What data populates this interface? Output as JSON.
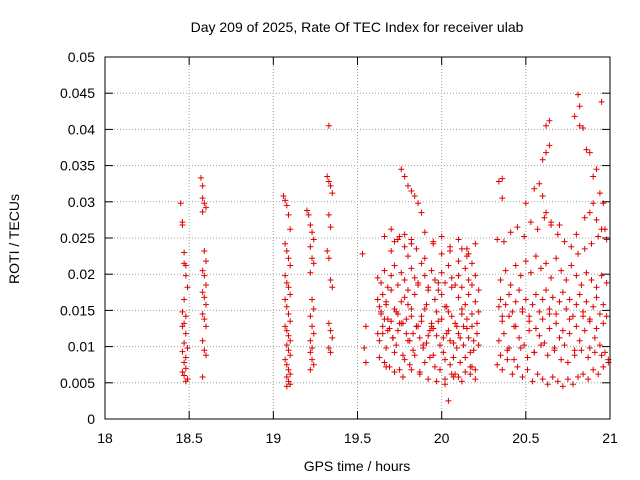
{
  "chart_data": {
    "type": "scatter",
    "title": "Day 209 of 2025, Rate Of TEC Index for receiver ulab",
    "xlabel": "GPS time / hours",
    "ylabel": "ROTI / TECUs",
    "xlim": [
      18,
      21
    ],
    "ylim": [
      0,
      0.05
    ],
    "xticks": [
      18,
      18.5,
      19,
      19.5,
      20,
      20.5,
      21
    ],
    "xtick_labels": [
      "18",
      "18.5",
      "19",
      "19.5",
      "20",
      "20.5",
      "21"
    ],
    "yticks": [
      0,
      0.005,
      0.01,
      0.015,
      0.02,
      0.025,
      0.03,
      0.035,
      0.04,
      0.045,
      0.05
    ],
    "ytick_labels": [
      "0",
      "0.005",
      "0.01",
      "0.015",
      "0.02",
      "0.025",
      "0.03",
      "0.035",
      "0.04",
      "0.045",
      "0.05"
    ],
    "grid": true,
    "marker": "+",
    "color": "#e00000",
    "x": [
      18.45,
      18.46,
      18.46,
      18.47,
      18.47,
      18.48,
      18.48,
      18.49,
      18.47,
      18.46,
      18.48,
      18.47,
      18.46,
      18.48,
      18.47,
      18.49,
      18.46,
      18.48,
      18.47,
      18.48,
      18.46,
      18.47,
      18.49,
      18.48,
      18.57,
      18.58,
      18.58,
      18.59,
      18.6,
      18.58,
      18.59,
      18.6,
      18.58,
      18.59,
      18.6,
      18.58,
      18.59,
      18.6,
      18.58,
      18.59,
      18.6,
      18.58,
      18.59,
      18.6,
      18.58,
      19.06,
      19.07,
      19.08,
      19.09,
      19.1,
      19.07,
      19.08,
      19.09,
      19.1,
      19.07,
      19.08,
      19.09,
      19.1,
      19.07,
      19.08,
      19.09,
      19.1,
      19.07,
      19.08,
      19.09,
      19.1,
      19.08,
      19.09,
      19.1,
      19.07,
      19.08,
      19.09,
      19.1,
      19.08,
      19.09,
      19.1,
      19.08,
      19.2,
      19.21,
      19.22,
      19.23,
      19.24,
      19.22,
      19.23,
      19.24,
      19.22,
      19.23,
      19.24,
      19.22,
      19.23,
      19.24,
      19.22,
      19.23,
      19.22,
      19.23,
      19.24,
      19.22,
      19.32,
      19.33,
      19.34,
      19.35,
      19.33,
      19.34,
      19.32,
      19.33,
      19.34,
      19.35,
      19.33,
      19.34,
      19.35,
      19.33,
      19.34,
      19.33,
      19.53,
      19.55,
      19.54,
      19.55,
      19.62,
      19.63,
      19.64,
      19.65,
      19.66,
      19.67,
      19.68,
      19.7,
      19.72,
      19.74,
      19.76,
      19.78,
      19.8,
      19.82,
      19.84,
      19.86,
      19.88,
      19.9,
      19.92,
      19.94,
      19.96,
      19.98,
      20.0,
      20.02,
      20.04,
      20.06,
      20.08,
      20.1,
      20.12,
      20.14,
      20.16,
      20.18,
      20.2,
      20.22,
      19.63,
      19.65,
      19.67,
      19.69,
      19.71,
      19.73,
      19.75,
      19.77,
      19.79,
      19.81,
      19.83,
      19.85,
      19.87,
      19.89,
      19.91,
      19.93,
      19.95,
      19.97,
      19.99,
      20.01,
      20.03,
      20.05,
      20.07,
      20.09,
      20.11,
      20.13,
      20.15,
      20.17,
      20.19,
      20.21,
      19.62,
      19.64,
      19.66,
      19.68,
      19.7,
      19.72,
      19.74,
      19.76,
      19.78,
      19.8,
      19.82,
      19.84,
      19.86,
      19.88,
      19.9,
      19.92,
      19.94,
      19.96,
      19.98,
      20.0,
      20.02,
      20.04,
      20.06,
      20.08,
      20.1,
      20.12,
      20.14,
      20.16,
      20.18,
      20.2,
      20.22,
      19.63,
      19.66,
      19.69,
      19.72,
      19.75,
      19.78,
      19.81,
      19.84,
      19.87,
      19.9,
      19.93,
      19.96,
      19.99,
      20.02,
      20.05,
      20.08,
      20.11,
      20.14,
      20.17,
      20.2,
      19.64,
      19.67,
      19.7,
      19.73,
      19.76,
      19.79,
      19.82,
      19.85,
      19.88,
      19.91,
      19.94,
      19.97,
      20.0,
      20.03,
      20.06,
      20.09,
      20.12,
      20.15,
      20.18,
      20.21,
      19.62,
      19.65,
      19.68,
      19.71,
      19.74,
      19.77,
      19.8,
      19.83,
      19.86,
      19.89,
      19.92,
      19.95,
      19.98,
      20.01,
      20.04,
      20.07,
      20.1,
      20.13,
      20.16,
      20.19,
      20.22,
      19.7,
      19.72,
      19.75,
      19.78,
      19.8,
      19.82,
      19.85,
      19.9,
      19.95,
      20.0,
      20.05,
      20.1,
      20.15,
      19.76,
      19.78,
      19.8,
      19.82,
      19.84,
      19.86,
      19.88,
      20.02,
      20.06,
      20.1,
      20.14,
      20.18,
      19.66,
      19.7,
      19.74,
      19.78,
      19.82,
      19.9,
      19.95,
      20.0,
      20.05,
      20.1,
      20.15,
      20.2,
      19.67,
      19.72,
      19.77,
      19.82,
      19.87,
      19.92,
      19.97,
      20.02,
      20.07,
      20.12,
      20.17,
      20.2,
      20.04,
      20.12,
      20.16,
      20.18,
      20.33,
      20.34,
      20.35,
      20.36,
      20.38,
      20.4,
      20.42,
      20.44,
      20.46,
      20.48,
      20.5,
      20.52,
      20.54,
      20.56,
      20.58,
      20.6,
      20.62,
      20.64,
      20.66,
      20.68,
      20.7,
      20.72,
      20.74,
      20.76,
      20.78,
      20.8,
      20.82,
      20.84,
      20.86,
      20.88,
      20.9,
      20.92,
      20.94,
      20.96,
      20.98,
      20.34,
      20.37,
      20.4,
      20.43,
      20.46,
      20.49,
      20.52,
      20.55,
      20.58,
      20.61,
      20.64,
      20.67,
      20.7,
      20.73,
      20.76,
      20.79,
      20.82,
      20.85,
      20.88,
      20.91,
      20.94,
      20.97,
      20.35,
      20.38,
      20.41,
      20.44,
      20.47,
      20.5,
      20.53,
      20.56,
      20.59,
      20.62,
      20.65,
      20.68,
      20.71,
      20.74,
      20.77,
      20.8,
      20.83,
      20.86,
      20.89,
      20.92,
      20.95,
      20.98,
      20.33,
      20.36,
      20.39,
      20.42,
      20.45,
      20.48,
      20.51,
      20.54,
      20.57,
      20.6,
      20.63,
      20.66,
      20.69,
      20.72,
      20.75,
      20.78,
      20.81,
      20.84,
      20.87,
      20.9,
      20.93,
      20.96,
      20.99,
      20.36,
      20.4,
      20.44,
      20.48,
      20.52,
      20.56,
      20.6,
      20.64,
      20.68,
      20.72,
      20.76,
      20.8,
      20.84,
      20.88,
      20.92,
      20.96,
      20.37,
      20.41,
      20.45,
      20.49,
      20.53,
      20.57,
      20.61,
      20.65,
      20.69,
      20.73,
      20.77,
      20.81,
      20.85,
      20.89,
      20.93,
      20.97,
      20.35,
      20.39,
      20.43,
      20.47,
      20.51,
      20.55,
      20.59,
      20.63,
      20.67,
      20.71,
      20.75,
      20.79,
      20.83,
      20.87,
      20.91,
      20.95,
      20.99,
      20.36,
      20.5,
      20.55,
      20.58,
      20.6,
      20.62,
      20.65,
      20.7,
      20.8,
      20.85,
      20.88,
      20.9,
      20.92,
      20.95,
      20.98,
      20.34,
      20.36,
      20.62,
      20.64,
      20.82,
      20.84,
      20.9,
      20.92,
      20.94,
      20.96,
      20.6,
      20.62,
      20.64,
      20.86,
      20.88,
      20.81,
      20.82,
      20.79,
      20.95
    ],
    "y": [
      0.0298,
      0.0272,
      0.0268,
      0.023,
      0.0215,
      0.0212,
      0.0198,
      0.0182,
      0.0165,
      0.0148,
      0.0142,
      0.0132,
      0.0128,
      0.0118,
      0.0105,
      0.0098,
      0.0093,
      0.0085,
      0.0078,
      0.007,
      0.0065,
      0.006,
      0.0055,
      0.0052,
      0.0333,
      0.0322,
      0.0305,
      0.0298,
      0.0292,
      0.0286,
      0.0232,
      0.0218,
      0.0205,
      0.0198,
      0.0185,
      0.0175,
      0.0168,
      0.0158,
      0.0145,
      0.0138,
      0.0128,
      0.0108,
      0.0095,
      0.0088,
      0.0058,
      0.0308,
      0.0302,
      0.0295,
      0.0282,
      0.0262,
      0.0242,
      0.0232,
      0.0222,
      0.0212,
      0.0198,
      0.0188,
      0.0182,
      0.0172,
      0.0165,
      0.0155,
      0.0145,
      0.0135,
      0.0128,
      0.0122,
      0.0115,
      0.0108,
      0.0102,
      0.0095,
      0.0088,
      0.0082,
      0.0075,
      0.0068,
      0.0062,
      0.0058,
      0.0052,
      0.0048,
      0.0045,
      0.0288,
      0.0282,
      0.0268,
      0.0258,
      0.0248,
      0.0238,
      0.0222,
      0.0215,
      0.0202,
      0.0165,
      0.0152,
      0.0142,
      0.0128,
      0.0118,
      0.0108,
      0.0098,
      0.0092,
      0.0082,
      0.0075,
      0.0068,
      0.0335,
      0.0328,
      0.0322,
      0.0312,
      0.0282,
      0.0265,
      0.0232,
      0.0222,
      0.0192,
      0.0182,
      0.0132,
      0.0122,
      0.0112,
      0.0098,
      0.0092,
      0.0405,
      0.0228,
      0.0128,
      0.0098,
      0.0078,
      0.0165,
      0.0155,
      0.0148,
      0.0172,
      0.0138,
      0.0162,
      0.0122,
      0.0178,
      0.0152,
      0.0145,
      0.0132,
      0.0168,
      0.0158,
      0.0142,
      0.0172,
      0.0188,
      0.0135,
      0.0152,
      0.0178,
      0.0128,
      0.0165,
      0.0188,
      0.0172,
      0.0155,
      0.0148,
      0.0182,
      0.0132,
      0.0168,
      0.0145,
      0.0158,
      0.0172,
      0.0128,
      0.0162,
      0.0148,
      0.0108,
      0.0118,
      0.0098,
      0.0125,
      0.0112,
      0.0102,
      0.0132,
      0.0088,
      0.0118,
      0.0108,
      0.0095,
      0.0128,
      0.0112,
      0.0098,
      0.0105,
      0.0122,
      0.0088,
      0.0115,
      0.0102,
      0.0092,
      0.0118,
      0.0108,
      0.0085,
      0.0098,
      0.0112,
      0.0102,
      0.0125,
      0.0092,
      0.0108,
      0.0118,
      0.0195,
      0.0188,
      0.0205,
      0.0182,
      0.0198,
      0.0212,
      0.0185,
      0.0202,
      0.0192,
      0.0178,
      0.0208,
      0.0195,
      0.0185,
      0.0215,
      0.0198,
      0.0182,
      0.0205,
      0.0192,
      0.0178,
      0.0202,
      0.0188,
      0.0212,
      0.0195,
      0.0185,
      0.0198,
      0.0182,
      0.0208,
      0.0192,
      0.0185,
      0.0198,
      0.0178,
      0.0085,
      0.0078,
      0.0072,
      0.0092,
      0.0068,
      0.0082,
      0.0075,
      0.0088,
      0.0065,
      0.0078,
      0.0085,
      0.0072,
      0.0068,
      0.0082,
      0.0075,
      0.0062,
      0.0078,
      0.0085,
      0.0072,
      0.0068,
      0.0145,
      0.0158,
      0.0135,
      0.0148,
      0.0162,
      0.0138,
      0.0152,
      0.0128,
      0.0142,
      0.0158,
      0.0132,
      0.0148,
      0.0138,
      0.0155,
      0.0142,
      0.0128,
      0.0152,
      0.0138,
      0.0145,
      0.0132,
      0.0118,
      0.0128,
      0.0138,
      0.0112,
      0.0122,
      0.0132,
      0.0108,
      0.0118,
      0.0128,
      0.0102,
      0.0115,
      0.0125,
      0.0135,
      0.0112,
      0.0122,
      0.0105,
      0.0118,
      0.0128,
      0.0112,
      0.0095,
      0.0102,
      0.0232,
      0.0245,
      0.0252,
      0.0238,
      0.0225,
      0.0248,
      0.0235,
      0.0222,
      0.0242,
      0.0228,
      0.0232,
      0.0218,
      0.0225,
      0.0345,
      0.0335,
      0.0322,
      0.0315,
      0.0308,
      0.0298,
      0.0285,
      0.0055,
      0.0062,
      0.0058,
      0.0065,
      0.0072,
      0.0252,
      0.0262,
      0.0248,
      0.0255,
      0.0242,
      0.0258,
      0.0245,
      0.0252,
      0.0238,
      0.0248,
      0.0235,
      0.0242,
      0.0072,
      0.0065,
      0.0058,
      0.0068,
      0.0062,
      0.0055,
      0.0052,
      0.0048,
      0.0058,
      0.0052,
      0.0062,
      0.0055,
      0.0025,
      0.0235,
      0.0228,
      0.0215,
      0.0248,
      0.0155,
      0.0165,
      0.0142,
      0.0158,
      0.0172,
      0.0148,
      0.0162,
      0.0178,
      0.0152,
      0.0165,
      0.0142,
      0.0158,
      0.0172,
      0.0148,
      0.0165,
      0.0178,
      0.0152,
      0.0168,
      0.0145,
      0.0162,
      0.0175,
      0.0152,
      0.0165,
      0.0142,
      0.0158,
      0.0172,
      0.0148,
      0.0162,
      0.0138,
      0.0155,
      0.0168,
      0.0145,
      0.0158,
      0.0142,
      0.0108,
      0.0118,
      0.0098,
      0.0128,
      0.0112,
      0.0102,
      0.0122,
      0.0092,
      0.0115,
      0.0105,
      0.0125,
      0.0098,
      0.0112,
      0.0102,
      0.0118,
      0.0095,
      0.0108,
      0.0122,
      0.0098,
      0.0112,
      0.0102,
      0.0092,
      0.0192,
      0.0205,
      0.0185,
      0.0212,
      0.0198,
      0.0218,
      0.0202,
      0.0225,
      0.0208,
      0.0215,
      0.0195,
      0.0222,
      0.0205,
      0.0192,
      0.0212,
      0.0198,
      0.0185,
      0.0202,
      0.0192,
      0.0182,
      0.0198,
      0.0188,
      0.0075,
      0.0068,
      0.0082,
      0.0062,
      0.0072,
      0.0058,
      0.0068,
      0.0052,
      0.0062,
      0.0055,
      0.0048,
      0.0058,
      0.0052,
      0.0045,
      0.0055,
      0.0048,
      0.0058,
      0.0062,
      0.0055,
      0.0068,
      0.0062,
      0.0072,
      0.0078,
      0.0135,
      0.0142,
      0.0128,
      0.0148,
      0.0135,
      0.0125,
      0.0138,
      0.0145,
      0.0132,
      0.0122,
      0.0138,
      0.0128,
      0.0142,
      0.0135,
      0.0125,
      0.0132,
      0.0245,
      0.0258,
      0.0265,
      0.0252,
      0.0272,
      0.0262,
      0.0278,
      0.0268,
      0.0255,
      0.0245,
      0.0238,
      0.0228,
      0.0235,
      0.0242,
      0.0252,
      0.0262,
      0.0088,
      0.0095,
      0.0082,
      0.0098,
      0.0085,
      0.0092,
      0.0102,
      0.0088,
      0.0095,
      0.0082,
      0.0078,
      0.0088,
      0.0095,
      0.0085,
      0.0092,
      0.0088,
      0.0082,
      0.0305,
      0.0298,
      0.0318,
      0.0325,
      0.0308,
      0.0285,
      0.0272,
      0.0268,
      0.0255,
      0.0278,
      0.0285,
      0.0298,
      0.0275,
      0.0262,
      0.0248,
      0.0328,
      0.0332,
      0.0405,
      0.0412,
      0.0405,
      0.0402,
      0.0335,
      0.0345,
      0.0312,
      0.0298,
      0.0358,
      0.0368,
      0.0378,
      0.0372,
      0.0368,
      0.0448,
      0.0432,
      0.0418,
      0.0438
    ]
  }
}
